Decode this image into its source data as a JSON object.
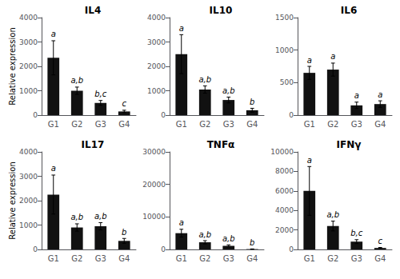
{
  "chart_data": [
    {
      "type": "bar",
      "title": "IL4",
      "ylabel": "Relative expression",
      "categories": [
        "G1",
        "G2",
        "G3",
        "G4"
      ],
      "values": [
        2350,
        1000,
        500,
        150
      ],
      "errors": [
        700,
        150,
        100,
        50
      ],
      "annotations": [
        "a",
        "a,b",
        "b,c",
        "c"
      ],
      "color": "#111111",
      "ylim": [
        0,
        4000
      ],
      "yticks": [
        0,
        1000,
        2000,
        3000,
        4000
      ],
      "grid": false
    },
    {
      "type": "bar",
      "title": "IL10",
      "categories": [
        "G1",
        "G2",
        "G3",
        "G4"
      ],
      "values": [
        2500,
        1050,
        620,
        200
      ],
      "errors": [
        800,
        150,
        120,
        80
      ],
      "annotations": [
        "a",
        "a,b",
        "a,b",
        "b"
      ],
      "color": "#111111",
      "ylim": [
        0,
        4000
      ],
      "yticks": [
        0,
        1000,
        2000,
        3000,
        4000
      ],
      "grid": false
    },
    {
      "type": "bar",
      "title": "IL6",
      "categories": [
        "G1",
        "G2",
        "G3",
        "G4"
      ],
      "values": [
        650,
        700,
        150,
        170
      ],
      "errors": [
        100,
        100,
        50,
        50
      ],
      "annotations": [
        "a",
        "a",
        "a",
        "a"
      ],
      "color": "#111111",
      "ylim": [
        0,
        1500
      ],
      "yticks": [
        0,
        500,
        1000,
        1500
      ],
      "grid": false
    },
    {
      "type": "bar",
      "title": "IL17",
      "ylabel": "Relative expression",
      "categories": [
        "G1",
        "G2",
        "G3",
        "G4"
      ],
      "values": [
        2250,
        900,
        950,
        350
      ],
      "errors": [
        800,
        150,
        150,
        100
      ],
      "annotations": [
        "a",
        "a,b",
        "a,b",
        "b"
      ],
      "color": "#111111",
      "ylim": [
        0,
        4000
      ],
      "yticks": [
        0,
        1000,
        2000,
        3000,
        4000
      ],
      "grid": false
    },
    {
      "type": "bar",
      "title": "TNFα",
      "categories": [
        "G1",
        "G2",
        "G3",
        "G4"
      ],
      "values": [
        5000,
        2200,
        1100,
        100
      ],
      "errors": [
        1200,
        500,
        300,
        50
      ],
      "annotations": [
        "a",
        "a,b",
        "a,b",
        "b"
      ],
      "color": "#111111",
      "ylim": [
        0,
        30000
      ],
      "yticks": [
        0,
        10000,
        20000,
        30000
      ],
      "grid": false
    },
    {
      "type": "bar",
      "title": "IFNγ",
      "categories": [
        "G1",
        "G2",
        "G3",
        "G4"
      ],
      "values": [
        6000,
        2400,
        800,
        150
      ],
      "errors": [
        2500,
        500,
        200,
        50
      ],
      "annotations": [
        "a",
        "a,b",
        "b,c",
        "c"
      ],
      "color": "#111111",
      "ylim": [
        0,
        10000
      ],
      "yticks": [
        0,
        2000,
        4000,
        6000,
        8000,
        10000
      ],
      "grid": false
    }
  ]
}
